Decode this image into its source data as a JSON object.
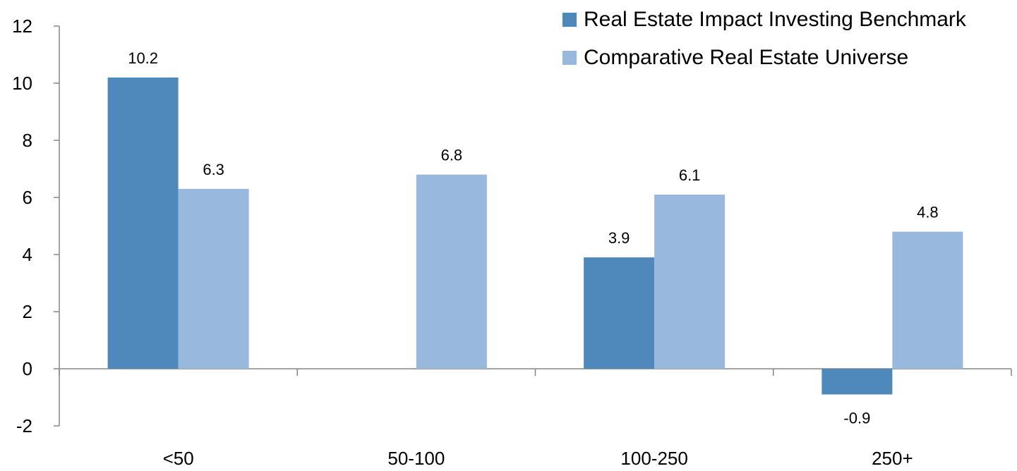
{
  "chart_data": {
    "type": "bar",
    "categories": [
      "<50",
      "50-100",
      "100-250",
      "250+"
    ],
    "series": [
      {
        "name": "Real Estate Impact Investing Benchmark",
        "color": "#4f89bb",
        "values": [
          10.2,
          null,
          3.9,
          -0.9
        ]
      },
      {
        "name": "Comparative Real Estate Universe",
        "color": "#98b8de",
        "values": [
          6.3,
          6.8,
          6.1,
          4.8
        ]
      }
    ],
    "data_labels": [
      [
        "10.2",
        "",
        "3.9",
        "-0.9"
      ],
      [
        "6.3",
        "6.8",
        "6.1",
        "4.8"
      ]
    ],
    "y_ticks": [
      -2,
      0,
      2,
      4,
      6,
      8,
      10,
      12
    ],
    "ylim": [
      -2,
      12
    ],
    "title": "",
    "xlabel": "",
    "ylabel": "",
    "grid": false,
    "legend_position": "top-right"
  }
}
